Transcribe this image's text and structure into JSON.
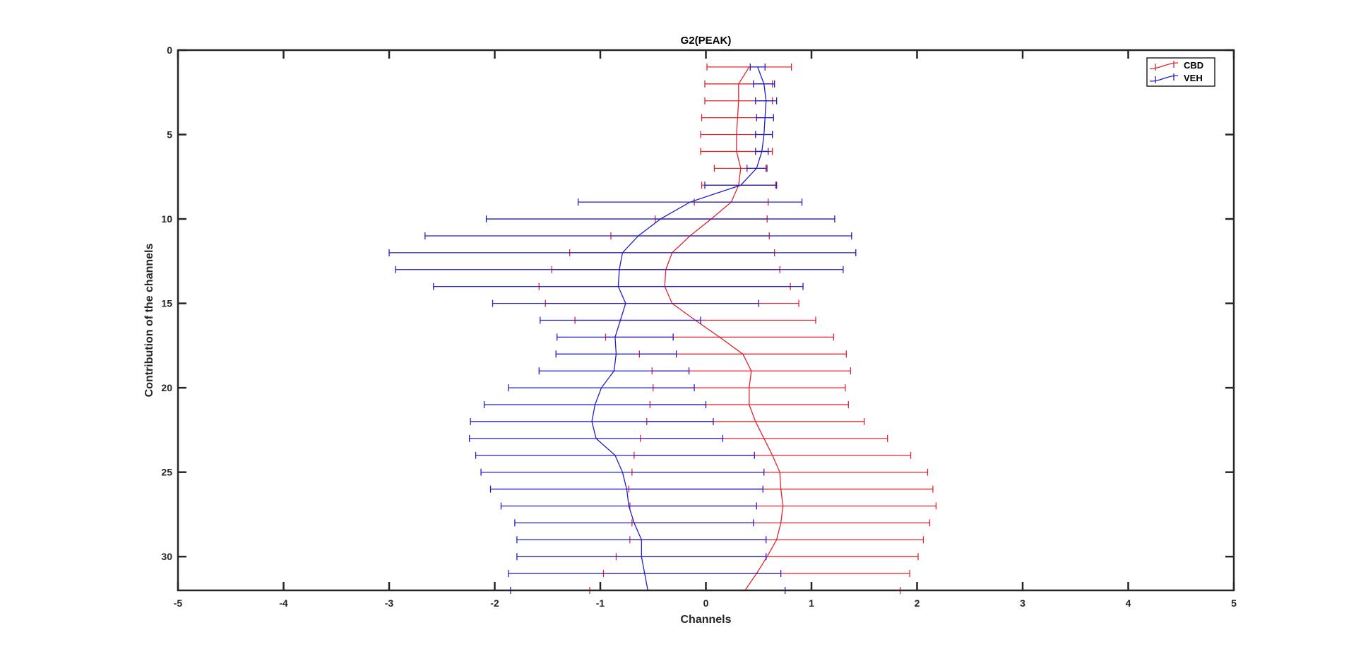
{
  "chart_data": {
    "type": "line",
    "title": "G2(PEAK)",
    "xlabel": "Channels",
    "ylabel": "Contribution of the channels",
    "xlim": [
      -5,
      5
    ],
    "ylim": [
      0,
      32
    ],
    "y_axis_reversed": true,
    "x_ticks": [
      "-5",
      "-4",
      "-3",
      "-2",
      "-1",
      "0",
      "1",
      "2",
      "3",
      "4",
      "5"
    ],
    "y_ticks": [
      "0",
      "5",
      "10",
      "15",
      "20",
      "25",
      "30"
    ],
    "grid": false,
    "legend_position": "top-right",
    "series": [
      {
        "name": "CBD",
        "color": "#e3242b",
        "y": [
          1,
          2,
          3,
          4,
          5,
          6,
          7,
          8,
          9,
          10,
          11,
          12,
          13,
          14,
          15,
          16,
          17,
          18,
          19,
          20,
          21,
          22,
          23,
          24,
          25,
          26,
          27,
          28,
          29,
          30,
          31,
          32
        ],
        "x": [
          0.41,
          0.31,
          0.31,
          0.3,
          0.29,
          0.29,
          0.33,
          0.31,
          0.24,
          0.05,
          -0.15,
          -0.32,
          -0.38,
          -0.39,
          -0.32,
          -0.1,
          0.13,
          0.35,
          0.43,
          0.41,
          0.41,
          0.47,
          0.55,
          0.63,
          0.7,
          0.71,
          0.73,
          0.71,
          0.67,
          0.58,
          0.48,
          0.37
        ],
        "err": [
          0.4,
          0.32,
          0.32,
          0.34,
          0.34,
          0.34,
          0.25,
          0.35,
          0.35,
          0.53,
          0.75,
          0.97,
          1.08,
          1.19,
          1.2,
          1.14,
          1.08,
          0.98,
          0.94,
          0.91,
          0.94,
          1.03,
          1.17,
          1.31,
          1.4,
          1.44,
          1.45,
          1.41,
          1.39,
          1.43,
          1.45,
          1.47
        ]
      },
      {
        "name": "VEH",
        "color": "#1f1fc8",
        "y": [
          1,
          2,
          3,
          4,
          5,
          6,
          7,
          8,
          9,
          10,
          11,
          12,
          13,
          14,
          15,
          16,
          17,
          18,
          19,
          20,
          21,
          22,
          23,
          24,
          25,
          26,
          27,
          28,
          29,
          30,
          31,
          32
        ],
        "x": [
          0.49,
          0.55,
          0.57,
          0.56,
          0.55,
          0.53,
          0.48,
          0.33,
          -0.15,
          -0.43,
          -0.64,
          -0.79,
          -0.82,
          -0.83,
          -0.76,
          -0.81,
          -0.86,
          -0.85,
          -0.87,
          -0.99,
          -1.05,
          -1.08,
          -1.04,
          -0.86,
          -0.79,
          -0.75,
          -0.73,
          -0.68,
          -0.61,
          -0.61,
          -0.58,
          -0.55
        ],
        "err": [
          0.07,
          0.1,
          0.1,
          0.08,
          0.08,
          0.06,
          0.09,
          0.34,
          1.06,
          1.65,
          2.02,
          2.21,
          2.12,
          1.75,
          1.26,
          0.76,
          0.55,
          0.57,
          0.71,
          0.88,
          1.05,
          1.15,
          1.2,
          1.32,
          1.34,
          1.29,
          1.21,
          1.13,
          1.18,
          1.18,
          1.29,
          1.3
        ]
      }
    ]
  }
}
